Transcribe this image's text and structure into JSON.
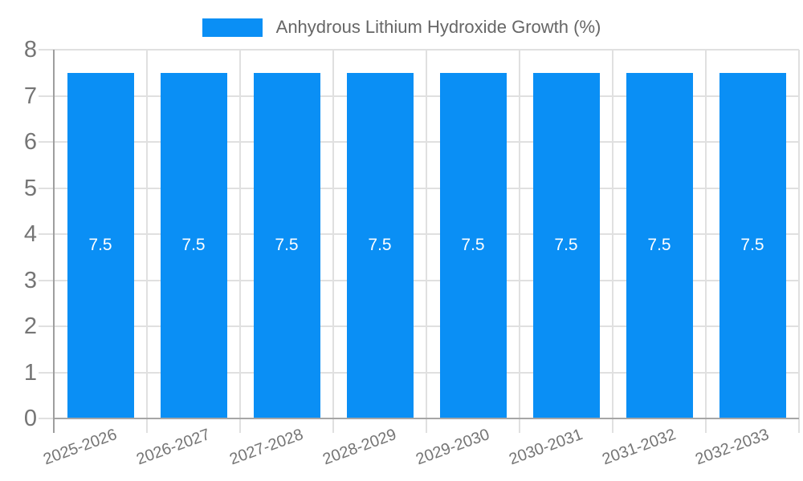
{
  "chart_data": {
    "type": "bar",
    "title": "",
    "legend_position": "top",
    "grid": true,
    "categories": [
      "2025-2026",
      "2026-2027",
      "2027-2028",
      "2028-2029",
      "2029-2030",
      "2030-2031",
      "2031-2032",
      "2032-2033"
    ],
    "series": [
      {
        "name": "Anhydrous Lithium Hydroxide Growth (%)",
        "values": [
          7.5,
          7.5,
          7.5,
          7.5,
          7.5,
          7.5,
          7.5,
          7.5
        ],
        "bar_labels": [
          "7.5",
          "7.5",
          "7.5",
          "7.5",
          "7.5",
          "7.5",
          "7.5",
          "7.5"
        ]
      }
    ],
    "xlabel": "",
    "ylabel": "",
    "ylim": [
      0,
      8
    ],
    "yticks": [
      0,
      1,
      2,
      3,
      4,
      5,
      6,
      7,
      8
    ],
    "colors": {
      "bar": "#0a8ff5",
      "bar_label": "#ffffff",
      "gridline": "#e0e0e0",
      "axis_line": "#9e9e9e",
      "baseline": "#a6a6a6",
      "tick_label": "#757575",
      "legend_text": "#666666",
      "background": "#ffffff"
    }
  }
}
